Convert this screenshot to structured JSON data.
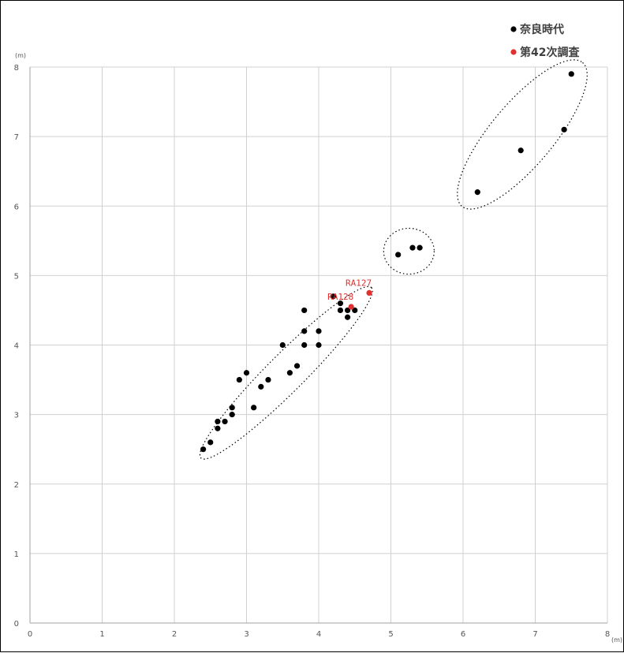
{
  "chart_data": {
    "type": "scatter",
    "title": "",
    "xlabel": "",
    "ylabel": "",
    "x_unit": "(m)",
    "y_unit": "(m)",
    "xlim": [
      0,
      8
    ],
    "ylim": [
      0,
      8
    ],
    "x_ticks": [
      "0",
      "1",
      "2",
      "3",
      "4",
      "5",
      "6",
      "7",
      "8"
    ],
    "y_ticks": [
      "0",
      "1",
      "2",
      "3",
      "4",
      "5",
      "6",
      "7",
      "8"
    ],
    "grid": true,
    "legend_position": "top-right",
    "series": [
      {
        "name": "奈良時代",
        "color": "#000000",
        "points": [
          [
            2.4,
            2.5
          ],
          [
            2.5,
            2.6
          ],
          [
            2.6,
            2.8
          ],
          [
            2.6,
            2.9
          ],
          [
            2.7,
            2.9
          ],
          [
            2.8,
            3.0
          ],
          [
            2.8,
            3.1
          ],
          [
            3.1,
            3.1
          ],
          [
            2.9,
            3.5
          ],
          [
            3.0,
            3.6
          ],
          [
            3.2,
            3.4
          ],
          [
            3.3,
            3.5
          ],
          [
            3.6,
            3.6
          ],
          [
            3.7,
            3.7
          ],
          [
            3.5,
            4.0
          ],
          [
            3.8,
            4.0
          ],
          [
            4.0,
            4.0
          ],
          [
            3.8,
            4.2
          ],
          [
            4.0,
            4.2
          ],
          [
            3.8,
            4.5
          ],
          [
            4.3,
            4.5
          ],
          [
            4.4,
            4.5
          ],
          [
            4.5,
            4.5
          ],
          [
            4.4,
            4.4
          ],
          [
            4.3,
            4.6
          ],
          [
            4.2,
            4.7
          ],
          [
            5.1,
            5.3
          ],
          [
            5.3,
            5.4
          ],
          [
            5.4,
            5.4
          ],
          [
            6.2,
            6.2
          ],
          [
            6.8,
            6.8
          ],
          [
            7.4,
            7.1
          ],
          [
            7.5,
            7.9
          ]
        ]
      },
      {
        "name": "第42次調査",
        "color": "#e03030",
        "points": [
          [
            4.7,
            4.75
          ],
          [
            4.45,
            4.55
          ]
        ],
        "labels": [
          "RA127",
          "RA128"
        ]
      }
    ],
    "groupings": [
      {
        "cx": 3.55,
        "cy": 3.6,
        "rx": 1.67,
        "ry": 0.27,
        "angle_deg": 45
      },
      {
        "cx": 5.25,
        "cy": 5.35,
        "rx": 0.35,
        "ry": 0.33,
        "angle_deg": 0
      },
      {
        "cx": 6.82,
        "cy": 7.03,
        "rx": 1.3,
        "ry": 0.45,
        "angle_deg": 50
      }
    ]
  }
}
